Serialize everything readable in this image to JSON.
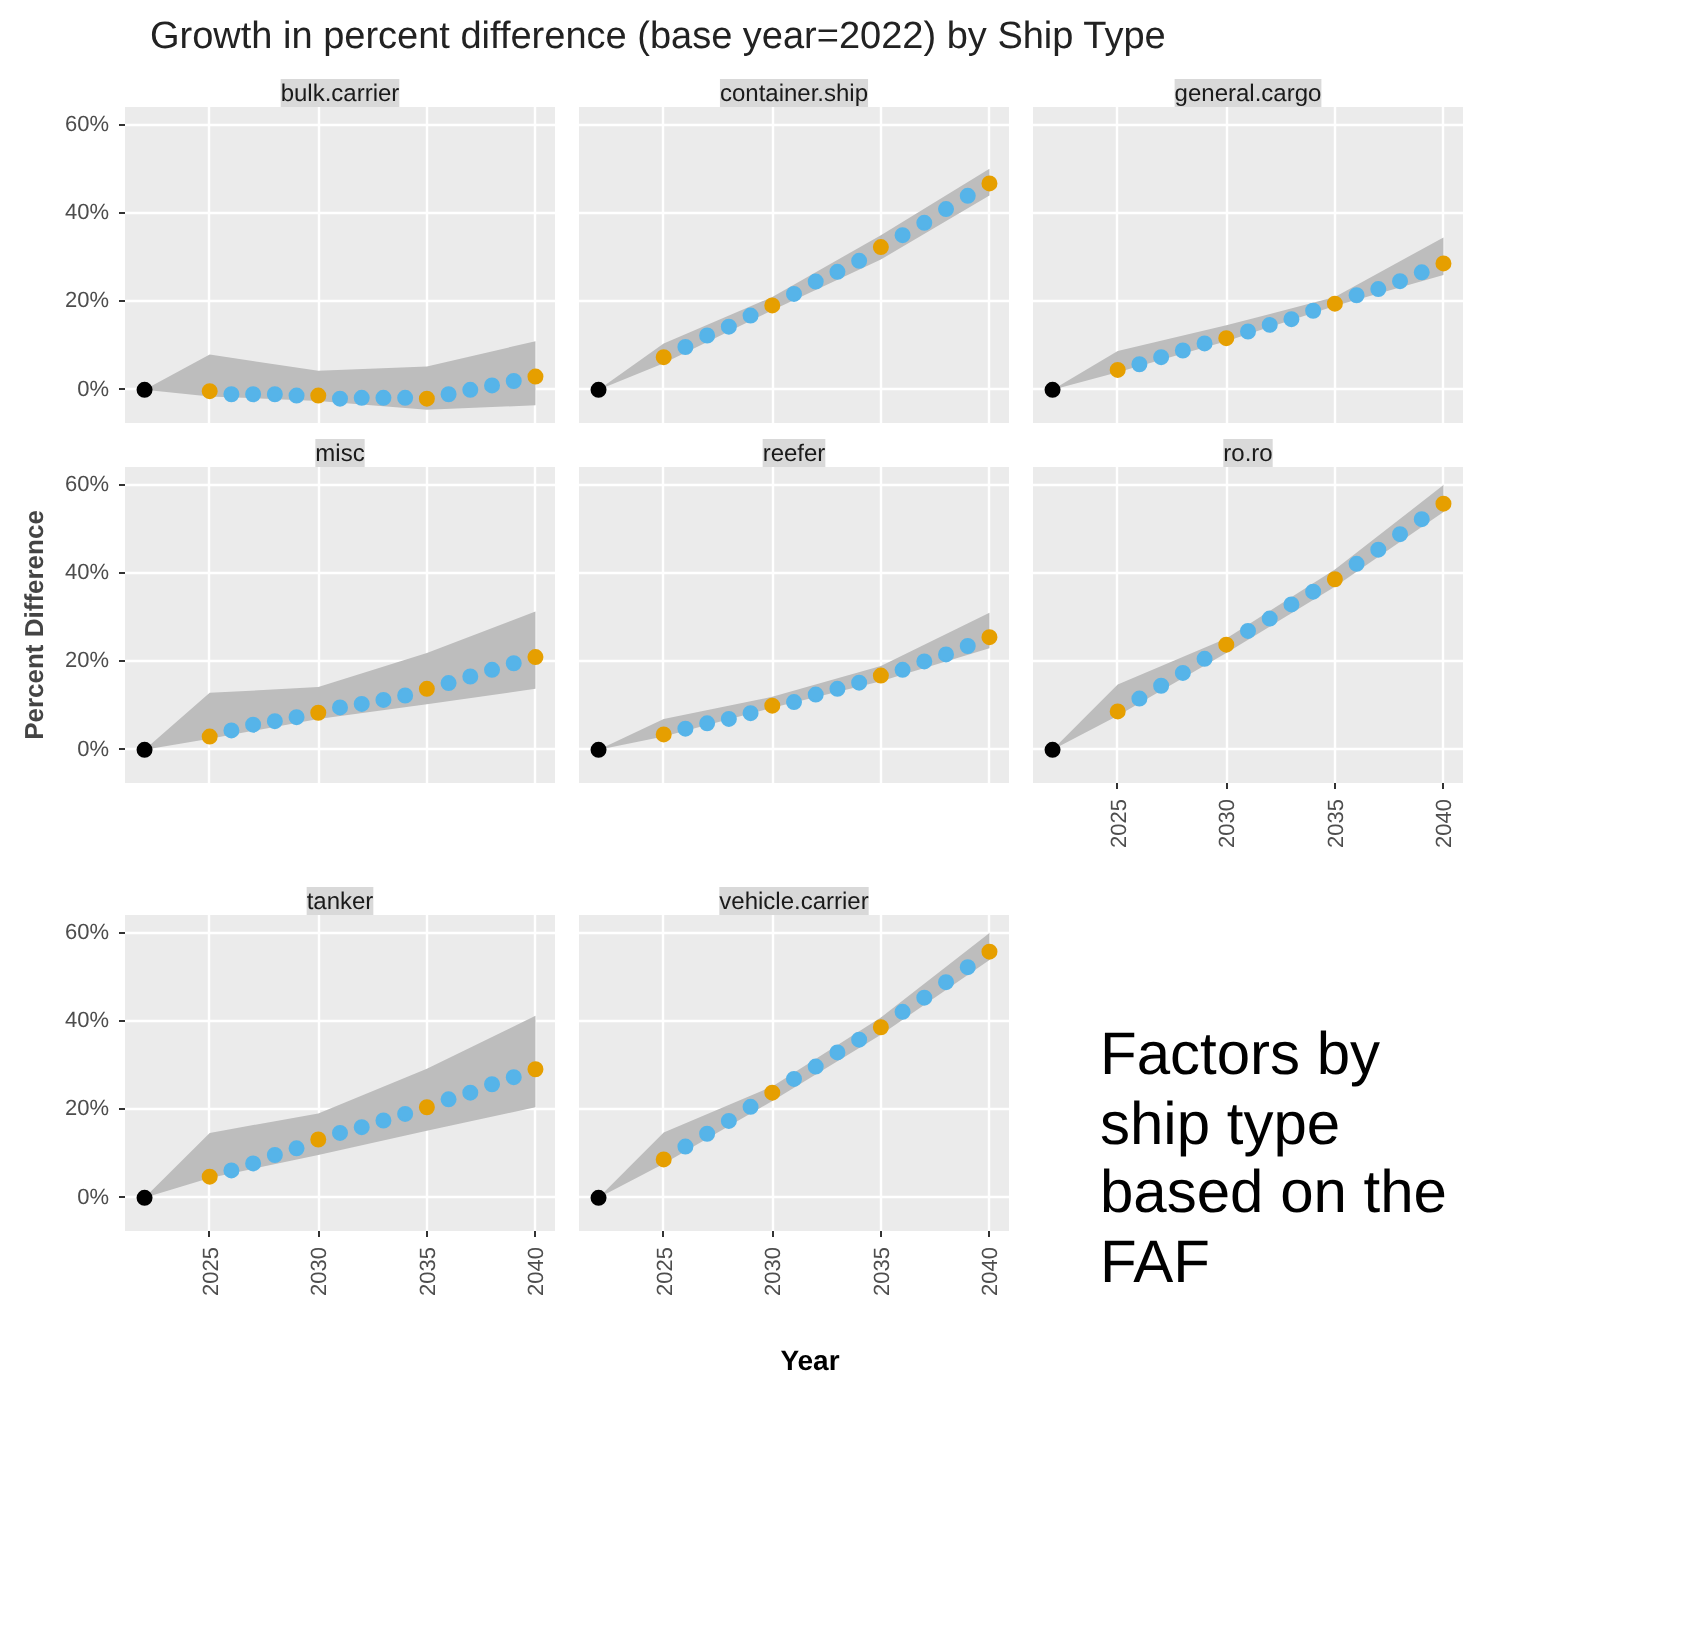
{
  "chart_data": [
    {
      "type": "other",
      "title": "Growth in percent difference (base year=2022) by Ship Type",
      "xlabel": "Year",
      "annotations": [
        "Factors by ship type based on the FAF"
      ]
    },
    {
      "type": "scatter",
      "title": "bulk.carrier",
      "xlim": [
        2021.1,
        2040.9
      ],
      "ylim": [
        -7.5,
        64
      ],
      "xticks": [
        2025,
        2030,
        2035,
        2040
      ],
      "yticks": [
        {
          "value": 0,
          "label": "0%"
        },
        {
          "value": 20,
          "label": "20%"
        },
        {
          "value": 40,
          "label": "40%"
        },
        {
          "value": 60,
          "label": "60%"
        }
      ],
      "grid": true,
      "marker": "circle",
      "tick_labels": "y",
      "series": [
        {
          "x": [
            2022,
            2025,
            2030,
            2035,
            2040
          ],
          "values": [
            0,
            -0.3,
            -1.3,
            -2,
            3
          ],
          "colors": [
            "#000000",
            "#e69f00",
            "#e69f00",
            "#e69f00",
            "#e69f00"
          ],
          "lower": [
            0,
            -1.5,
            -2.5,
            -4.5,
            -3.5
          ],
          "upper": [
            0,
            8,
            4.3,
            5.3,
            11
          ]
        },
        {
          "x": [
            2026,
            2027,
            2028,
            2029,
            2031,
            2032,
            2033,
            2034,
            2036,
            2037,
            2038,
            2039
          ],
          "values": [
            -1,
            -1,
            -1,
            -1.3,
            -2,
            -1.8,
            -1.8,
            -1.8,
            -1,
            0,
            1,
            2
          ],
          "color": "#56b4e9"
        }
      ]
    },
    {
      "type": "scatter",
      "title": "container.ship",
      "xlim": [
        2021.1,
        2040.9
      ],
      "ylim": [
        -7.5,
        64
      ],
      "xticks": [
        2025,
        2030,
        2035,
        2040
      ],
      "yticks": [
        0,
        20,
        40,
        60
      ],
      "grid": true,
      "marker": "circle",
      "tick_labels": false,
      "series": [
        {
          "x": [
            2022,
            2025,
            2030,
            2035,
            2040
          ],
          "values": [
            0,
            7.4,
            19.1,
            32.3,
            46.7
          ],
          "colors": [
            "#000000",
            "#e69f00",
            "#e69f00",
            "#e69f00",
            "#e69f00"
          ],
          "lower": [
            0,
            6,
            18,
            29.5,
            44
          ],
          "upper": [
            0,
            10.5,
            21,
            35,
            50
          ]
        },
        {
          "x": [
            2026,
            2027,
            2028,
            2029,
            2031,
            2032,
            2033,
            2034,
            2036,
            2037,
            2038,
            2039
          ],
          "values": [
            9.7,
            12.3,
            14.3,
            16.8,
            21.7,
            24.5,
            26.7,
            29.2,
            35,
            37.8,
            40.9,
            43.9
          ],
          "color": "#56b4e9"
        }
      ]
    },
    {
      "type": "scatter",
      "title": "general.cargo",
      "xlim": [
        2021.1,
        2040.9
      ],
      "ylim": [
        -7.5,
        64
      ],
      "xticks": [
        2025,
        2030,
        2035,
        2040
      ],
      "yticks": [
        0,
        20,
        40,
        60
      ],
      "grid": true,
      "marker": "circle",
      "tick_labels": false,
      "series": [
        {
          "x": [
            2022,
            2025,
            2030,
            2035,
            2040
          ],
          "values": [
            0,
            4.5,
            11.7,
            19.5,
            28.6
          ],
          "colors": [
            "#000000",
            "#e69f00",
            "#e69f00",
            "#e69f00",
            "#e69f00"
          ],
          "lower": [
            0,
            4,
            11,
            19,
            26
          ],
          "upper": [
            0,
            8.8,
            14.6,
            21,
            34.5
          ]
        },
        {
          "x": [
            2026,
            2027,
            2028,
            2029,
            2031,
            2032,
            2033,
            2034,
            2036,
            2037,
            2038,
            2039
          ],
          "values": [
            5.8,
            7.4,
            8.9,
            10.5,
            13.2,
            14.7,
            16,
            17.9,
            21.4,
            22.8,
            24.6,
            26.6
          ],
          "color": "#56b4e9"
        }
      ]
    },
    {
      "type": "scatter",
      "title": "misc",
      "ylabel": "Percent Difference",
      "xlim": [
        2021.1,
        2040.9
      ],
      "ylim": [
        -7.5,
        64
      ],
      "xticks": [
        2025,
        2030,
        2035,
        2040
      ],
      "yticks": [
        {
          "value": 0,
          "label": "0%"
        },
        {
          "value": 20,
          "label": "20%"
        },
        {
          "value": 40,
          "label": "40%"
        },
        {
          "value": 60,
          "label": "60%"
        }
      ],
      "grid": true,
      "marker": "circle",
      "tick_labels": "y",
      "series": [
        {
          "x": [
            2022,
            2025,
            2030,
            2035,
            2040
          ],
          "values": [
            0,
            3,
            8.4,
            13.8,
            21
          ],
          "colors": [
            "#000000",
            "#e69f00",
            "#e69f00",
            "#e69f00",
            "#e69f00"
          ],
          "lower": [
            0,
            2.5,
            7,
            10.3,
            13.8
          ],
          "upper": [
            0,
            12.9,
            14.2,
            21.9,
            31.3
          ]
        },
        {
          "x": [
            2026,
            2027,
            2028,
            2029,
            2031,
            2032,
            2033,
            2034,
            2036,
            2037,
            2038,
            2039
          ],
          "values": [
            4.4,
            5.7,
            6.5,
            7.4,
            9.6,
            10.4,
            11.3,
            12.3,
            15.1,
            16.6,
            18.1,
            19.6
          ],
          "color": "#56b4e9"
        }
      ]
    },
    {
      "type": "scatter",
      "title": "reefer",
      "xlim": [
        2021.1,
        2040.9
      ],
      "ylim": [
        -7.5,
        64
      ],
      "xticks": [
        2025,
        2030,
        2035,
        2040
      ],
      "yticks": [
        0,
        20,
        40,
        60
      ],
      "grid": true,
      "marker": "circle",
      "tick_labels": false,
      "series": [
        {
          "x": [
            2022,
            2025,
            2030,
            2035,
            2040
          ],
          "values": [
            0,
            3.5,
            10,
            16.8,
            25.5
          ],
          "colors": [
            "#000000",
            "#e69f00",
            "#e69f00",
            "#e69f00",
            "#e69f00"
          ],
          "lower": [
            0,
            3,
            9.5,
            15.5,
            23
          ],
          "upper": [
            0,
            7,
            12,
            19,
            31
          ]
        },
        {
          "x": [
            2026,
            2027,
            2028,
            2029,
            2031,
            2032,
            2033,
            2034,
            2036,
            2037,
            2038,
            2039
          ],
          "values": [
            4.8,
            6,
            7,
            8.3,
            10.8,
            12.5,
            13.8,
            15.2,
            18.1,
            20,
            21.6,
            23.5
          ],
          "color": "#56b4e9"
        }
      ]
    },
    {
      "type": "scatter",
      "title": "ro.ro",
      "xlim": [
        2021.1,
        2040.9
      ],
      "ylim": [
        -7.5,
        64
      ],
      "xticks": [
        2025,
        2030,
        2035,
        2040
      ],
      "yticks": [
        0,
        20,
        40,
        60
      ],
      "grid": true,
      "marker": "circle",
      "tick_labels": "x",
      "series": [
        {
          "x": [
            2022,
            2025,
            2030,
            2035,
            2040
          ],
          "values": [
            0,
            8.7,
            23.8,
            38.6,
            55.7
          ],
          "colors": [
            "#000000",
            "#e69f00",
            "#e69f00",
            "#e69f00",
            "#e69f00"
          ],
          "lower": [
            0,
            7.7,
            21.9,
            36.9,
            53.8
          ],
          "upper": [
            0,
            14.8,
            25.2,
            40.8,
            59.9
          ]
        },
        {
          "x": [
            2026,
            2027,
            2028,
            2029,
            2031,
            2032,
            2033,
            2034,
            2036,
            2037,
            2038,
            2039
          ],
          "values": [
            11.6,
            14.5,
            17.4,
            20.6,
            26.9,
            29.7,
            32.9,
            35.8,
            42.1,
            45.3,
            48.8,
            52.2
          ],
          "color": "#56b4e9"
        }
      ]
    },
    {
      "type": "scatter",
      "title": "tanker",
      "xlim": [
        2021.1,
        2040.9
      ],
      "ylim": [
        -7.5,
        64
      ],
      "xticks": [
        2025,
        2030,
        2035,
        2040
      ],
      "yticks": [
        {
          "value": 0,
          "label": "0%"
        },
        {
          "value": 20,
          "label": "20%"
        },
        {
          "value": 40,
          "label": "40%"
        },
        {
          "value": 60,
          "label": "60%"
        }
      ],
      "grid": true,
      "marker": "circle",
      "series": [
        {
          "x": [
            2022,
            2025,
            2030,
            2035,
            2040
          ],
          "values": [
            0,
            4.8,
            13.2,
            20.5,
            29.1
          ],
          "colors": [
            "#000000",
            "#e69f00",
            "#e69f00",
            "#e69f00",
            "#e69f00"
          ],
          "lower": [
            0,
            4.5,
            9.7,
            15.2,
            20.5
          ],
          "upper": [
            0,
            14.7,
            19.1,
            29.2,
            41.2
          ]
        },
        {
          "x": [
            2026,
            2027,
            2028,
            2029,
            2031,
            2032,
            2033,
            2034,
            2036,
            2037,
            2038,
            2039
          ],
          "values": [
            6.2,
            7.8,
            9.7,
            11.2,
            14.7,
            16,
            17.5,
            19,
            22.3,
            23.8,
            25.7,
            27.3
          ],
          "color": "#56b4e9"
        }
      ]
    },
    {
      "type": "scatter",
      "title": "vehicle.carrier",
      "xlim": [
        2021.1,
        2040.9
      ],
      "ylim": [
        -7.5,
        64
      ],
      "xticks": [
        2025,
        2030,
        2035,
        2040
      ],
      "yticks": [
        0,
        20,
        40,
        60
      ],
      "grid": true,
      "marker": "circle",
      "tick_labels": "x",
      "series": [
        {
          "x": [
            2022,
            2025,
            2030,
            2035,
            2040
          ],
          "values": [
            0,
            8.7,
            23.8,
            38.6,
            55.7
          ],
          "colors": [
            "#000000",
            "#e69f00",
            "#e69f00",
            "#e69f00",
            "#e69f00"
          ],
          "lower": [
            0,
            7.7,
            21.9,
            36.9,
            53.8
          ],
          "upper": [
            0,
            14.8,
            25.2,
            40.8,
            59.9
          ]
        },
        {
          "x": [
            2026,
            2027,
            2028,
            2029,
            2031,
            2032,
            2033,
            2034,
            2036,
            2037,
            2038,
            2039
          ],
          "values": [
            11.6,
            14.5,
            17.4,
            20.6,
            26.9,
            29.7,
            32.9,
            35.8,
            42.1,
            45.3,
            48.8,
            52.2
          ],
          "color": "#56b4e9"
        }
      ]
    }
  ]
}
